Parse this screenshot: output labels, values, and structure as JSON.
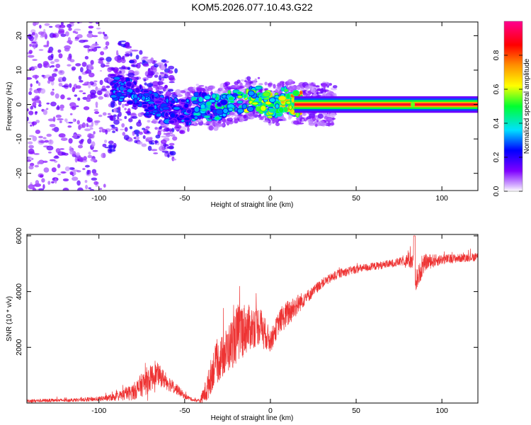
{
  "title": "KOM5.2026.077.10.43.G22",
  "colors": {
    "snr_line": "#ee3333",
    "ridge": "#ee2244",
    "frame": "#000000"
  },
  "chart_data": [
    {
      "id": "spectrogram",
      "type": "heatmap",
      "xlabel": "Height of straight line (km)",
      "ylabel": "Frequency (Hz)",
      "xlim": [
        -142,
        121
      ],
      "ylim": [
        -25,
        24
      ],
      "xticks": [
        -100,
        -50,
        0,
        50,
        100
      ],
      "yticks": [
        -20,
        -10,
        0,
        10,
        20
      ],
      "colorbar": {
        "label": "Normalized spectral amplitude",
        "range": [
          0,
          1
        ],
        "ticks": [
          0.0,
          0.2,
          0.4,
          0.6,
          0.8
        ],
        "tick_labels": [
          "0.0",
          "0.2",
          "0.4",
          "0.6",
          "0.8"
        ],
        "colormap": [
          "#e8d8ff",
          "#7f00ff",
          "#0000ff",
          "#00e0ff",
          "#00ff00",
          "#ffff00",
          "#ff8000",
          "#ff0000",
          "#ff0080"
        ]
      },
      "ridge": {
        "x": [
          -88,
          -80,
          -72,
          -64,
          -56,
          -48,
          -42,
          -36,
          -30,
          -24,
          -18,
          -12,
          -8,
          -4,
          0,
          4,
          8,
          12,
          16,
          121
        ],
        "frequency": [
          5,
          3,
          0.5,
          -1,
          -2,
          -2,
          0,
          -1,
          -1,
          0.5,
          1,
          2,
          2.5,
          0.5,
          0,
          0,
          1.5,
          1,
          0,
          0
        ],
        "amplitude": [
          0.3,
          0.35,
          0.35,
          0.3,
          0.3,
          0.35,
          0.45,
          0.4,
          0.45,
          0.5,
          0.55,
          0.6,
          0.55,
          0.6,
          0.65,
          0.65,
          0.7,
          0.7,
          0.8,
          0.8
        ]
      }
    },
    {
      "id": "snr",
      "type": "line",
      "xlabel": "Height of straight line (km)",
      "ylabel": "SNR (10 * v/v)",
      "xlim": [
        -142,
        121
      ],
      "ylim": [
        0,
        6050
      ],
      "xticks": [
        -100,
        -50,
        0,
        50,
        100
      ],
      "yticks": [
        2000,
        4000,
        6000
      ],
      "series": [
        {
          "name": "SNR",
          "x": [
            -142,
            -120,
            -100,
            -90,
            -80,
            -72,
            -66,
            -60,
            -55,
            -50,
            -45,
            -41,
            -37,
            -33,
            -28,
            -23,
            -18,
            -12,
            -6,
            0,
            5,
            10,
            15,
            20,
            25,
            30,
            40,
            50,
            60,
            70,
            78,
            83,
            85,
            90,
            100,
            110,
            121
          ],
          "value": [
            80,
            100,
            150,
            220,
            400,
            800,
            1050,
            750,
            520,
            250,
            110,
            80,
            500,
            1300,
            1650,
            2100,
            2600,
            2700,
            2800,
            2200,
            2900,
            3200,
            3500,
            3750,
            4000,
            4300,
            4650,
            4800,
            4900,
            5000,
            5100,
            5150,
            4400,
            5050,
            5150,
            5200,
            5250
          ],
          "noise": [
            60,
            60,
            80,
            140,
            300,
            500,
            400,
            300,
            200,
            100,
            50,
            80,
            500,
            700,
            800,
            900,
            1100,
            800,
            700,
            400,
            400,
            500,
            400,
            250,
            200,
            170,
            160,
            150,
            140,
            140,
            160,
            400,
            400,
            300,
            180,
            150,
            150
          ]
        }
      ]
    }
  ]
}
